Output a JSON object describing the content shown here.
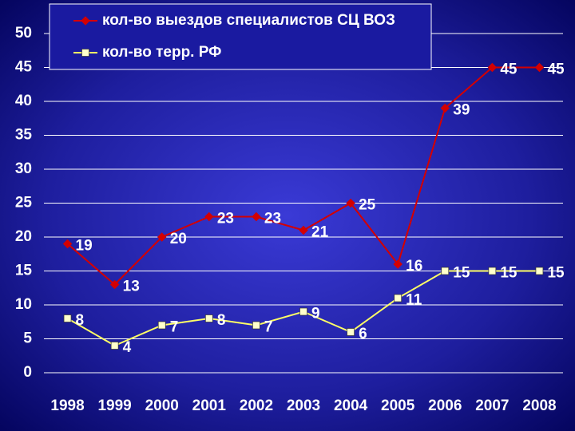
{
  "chart_data": {
    "type": "line",
    "categories": [
      "1998",
      "1999",
      "2000",
      "2001",
      "2002",
      "2003",
      "2004",
      "2005",
      "2006",
      "2007",
      "2008"
    ],
    "series": [
      {
        "name": "кол-во выездов специалистов СЦ ВОЗ",
        "color": "#d40000",
        "marker": "diamond",
        "values": [
          19,
          13,
          20,
          23,
          23,
          21,
          25,
          16,
          39,
          45,
          45
        ]
      },
      {
        "name": "кол-во терр. РФ",
        "color": "#ffff66",
        "marker": "square",
        "values": [
          8,
          4,
          7,
          8,
          7,
          9,
          6,
          11,
          15,
          15,
          15
        ]
      }
    ],
    "ylim": [
      0,
      50
    ],
    "yticks": [
      0,
      5,
      10,
      15,
      20,
      25,
      30,
      35,
      40,
      45,
      50
    ],
    "grid": true,
    "legend": "top"
  }
}
